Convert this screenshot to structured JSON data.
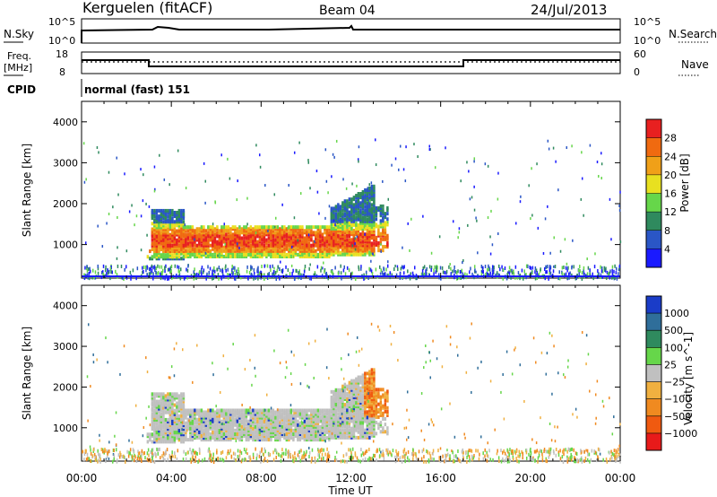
{
  "header": {
    "site": "Kerguelen (fitACF)",
    "beam": "Beam 04",
    "date": "24/Jul/2013"
  },
  "status_panels": {
    "nsky": {
      "label": "N.Sky",
      "ticks": [
        "10^5",
        "10^0"
      ]
    },
    "nsearch": {
      "label": "N.Search",
      "ticks": [
        "10^5",
        "10^0"
      ]
    },
    "freq": {
      "label_line1": "Freq.",
      "label_line2": "[MHz]",
      "ticks": [
        "18",
        "8"
      ]
    },
    "nave": {
      "label": "Nave",
      "ticks": [
        "60",
        "0"
      ]
    },
    "cpid": {
      "label": "CPID",
      "value": "normal (fast) 151"
    }
  },
  "chart_data": [
    {
      "type": "heatmap",
      "name": "power",
      "xlabel": "Time UT",
      "ylabel": "Slant Range [km]",
      "xlim": [
        0,
        24
      ],
      "ylim": [
        180,
        4500
      ],
      "x_ticks": [
        "00:00",
        "04:00",
        "08:00",
        "12:00",
        "16:00",
        "20:00",
        "00:00"
      ],
      "y_ticks": [
        1000,
        2000,
        3000,
        4000
      ],
      "colorbar": {
        "label": "Power [dB]",
        "ticks": [
          "4",
          "8",
          "12",
          "16",
          "20",
          "24",
          "28"
        ],
        "colors": [
          "#1a1aff",
          "#2a56c6",
          "#2f8a5e",
          "#66d64a",
          "#e8e020",
          "#f0a018",
          "#f06a10",
          "#e82020"
        ]
      },
      "scatter_band": {
        "time_range_hours": [
          2.9,
          13.6
        ],
        "core_range_km": [
          800,
          1400
        ],
        "upper_envelope_km": 2500,
        "dominant_values": "16-28 dB"
      }
    },
    {
      "type": "heatmap",
      "name": "velocity",
      "xlabel": "Time UT",
      "ylabel": "Slant Range [km]",
      "xlim": [
        0,
        24
      ],
      "ylim": [
        180,
        4500
      ],
      "x_ticks": [
        "00:00",
        "04:00",
        "08:00",
        "12:00",
        "16:00",
        "20:00",
        "00:00"
      ],
      "y_ticks": [
        1000,
        2000,
        3000,
        4000
      ],
      "colorbar": {
        "label": "Velocity [m s^-1]",
        "ticks": [
          "1000",
          "500",
          "100",
          "25",
          "−25",
          "−100",
          "−500",
          "−1000"
        ],
        "colors": [
          "#1a3cc8",
          "#2f6e9a",
          "#2f8a5e",
          "#66d64a",
          "#c0c0c0",
          "#f0b040",
          "#f08a20",
          "#f05a10",
          "#e81a1a"
        ]
      },
      "scatter_band": {
        "time_range_hours": [
          2.9,
          13.6
        ],
        "core_range_km": [
          800,
          1700
        ],
        "dominant_values": "-25 to 25 m/s (ground scatter)"
      }
    }
  ],
  "colors": {
    "nsky_trace": "#000000",
    "ground": "#1a1aff"
  }
}
